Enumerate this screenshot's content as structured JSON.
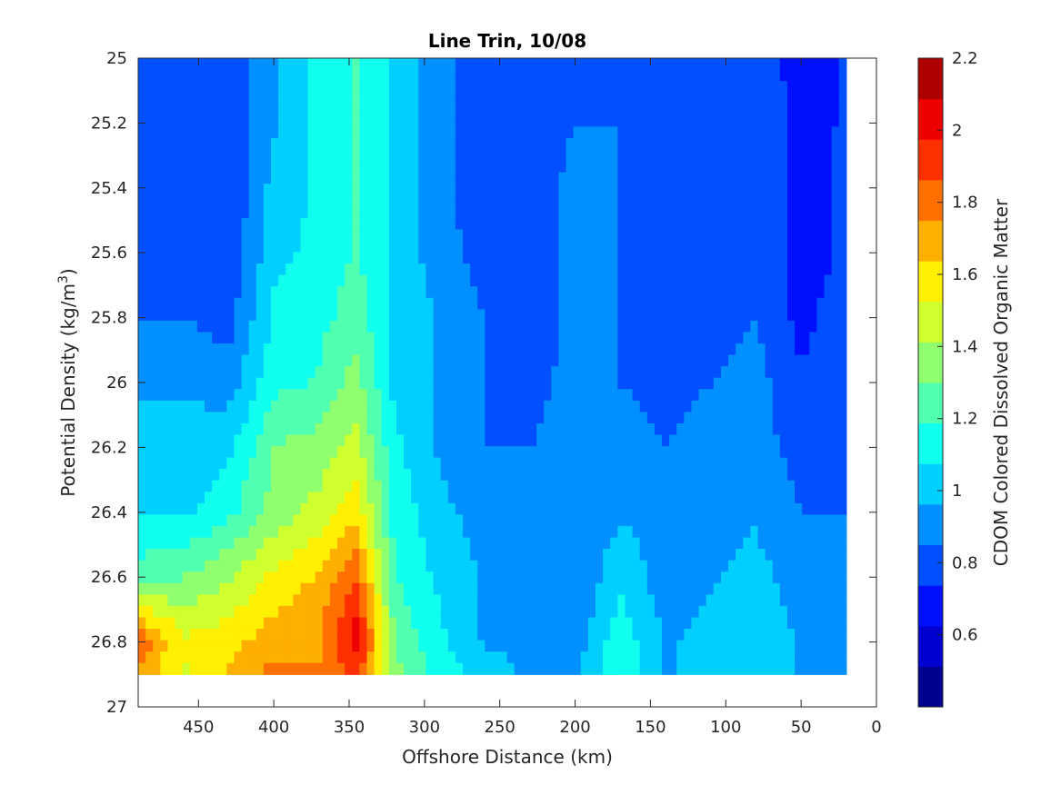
{
  "chart_data": {
    "type": "heatmap",
    "subtype": "filled-contour",
    "title": "Line Trin, 10/08",
    "xlabel": "Offshore Distance (km)",
    "ylabel": "Potential Density (kg/m^3)",
    "ylabel_parts": {
      "main": "Potential Density (kg/m",
      "sup": "3",
      "end": ")"
    },
    "colorbar_label": "CDOM Colored Dissolved Organic Matter",
    "x_reversed": true,
    "y_reversed": true,
    "xlim": [
      0,
      490
    ],
    "ylim": [
      25,
      27
    ],
    "xticks": [
      450,
      400,
      350,
      300,
      250,
      200,
      150,
      100,
      50,
      0
    ],
    "xtick_labels": [
      "450",
      "400",
      "350",
      "300",
      "250",
      "200",
      "150",
      "100",
      "50",
      "0"
    ],
    "yticks": [
      25,
      25.2,
      25.4,
      25.6,
      25.8,
      26,
      26.2,
      26.4,
      26.6,
      26.8,
      27
    ],
    "ytick_labels": [
      "25",
      "25.2",
      "25.4",
      "25.6",
      "25.8",
      "26",
      "26.2",
      "26.4",
      "26.6",
      "26.8",
      "27"
    ],
    "color_range": [
      0.4,
      2.2
    ],
    "colorbar_ticks": [
      0.6,
      0.8,
      1,
      1.2,
      1.4,
      1.6,
      1.8,
      2,
      2.2
    ],
    "colorbar_tick_labels": [
      "0.6",
      "0.8",
      "1",
      "1.2",
      "1.4",
      "1.6",
      "1.8",
      "2",
      "2.2"
    ],
    "colormap": [
      "#00008f",
      "#0000d0",
      "#0010ff",
      "#0050ff",
      "#0090ff",
      "#00d0ff",
      "#10ffef",
      "#50ffaf",
      "#90ff6f",
      "#d0ff2f",
      "#ffef00",
      "#ffaf00",
      "#ff7000",
      "#ff3000",
      "#ef0000",
      "#af0000"
    ],
    "grid": false,
    "no_data_region": "right edge, x < ~20 km; bottom, y > ~26.9",
    "x": [
      490,
      460,
      430,
      400,
      370,
      345,
      320,
      290,
      260,
      230,
      200,
      170,
      140,
      110,
      80,
      50,
      20
    ],
    "y": [
      25.0,
      25.2,
      25.4,
      25.6,
      25.8,
      26.0,
      26.2,
      26.4,
      26.6,
      26.8,
      26.9
    ],
    "z": [
      [
        0.8,
        0.85,
        0.75,
        0.95,
        1.1,
        1.2,
        1.05,
        0.9,
        0.75,
        0.75,
        0.85,
        0.8,
        0.75,
        0.8,
        0.85,
        0.65,
        0.75
      ],
      [
        0.8,
        0.85,
        0.75,
        0.95,
        1.1,
        1.2,
        1.05,
        0.9,
        0.75,
        0.75,
        0.85,
        0.85,
        0.75,
        0.8,
        0.85,
        0.7,
        0.75
      ],
      [
        0.8,
        0.85,
        0.75,
        1.0,
        1.1,
        1.2,
        1.05,
        0.9,
        0.75,
        0.75,
        0.9,
        0.85,
        0.75,
        0.8,
        0.85,
        0.7,
        0.75
      ],
      [
        0.8,
        0.85,
        0.75,
        1.05,
        1.1,
        1.2,
        1.05,
        0.9,
        0.8,
        0.75,
        0.9,
        0.85,
        0.75,
        0.8,
        0.85,
        0.7,
        0.75
      ],
      [
        0.85,
        0.85,
        0.8,
        1.1,
        1.15,
        1.25,
        1.05,
        0.95,
        0.85,
        0.75,
        0.9,
        0.85,
        0.75,
        0.8,
        0.85,
        0.7,
        0.8
      ],
      [
        0.95,
        0.95,
        0.9,
        1.15,
        1.2,
        1.35,
        1.05,
        0.95,
        0.85,
        0.8,
        0.9,
        0.85,
        0.8,
        0.85,
        0.9,
        0.75,
        0.8
      ],
      [
        1.0,
        1.0,
        1.05,
        1.3,
        1.35,
        1.45,
        1.1,
        0.95,
        0.85,
        0.85,
        0.9,
        0.9,
        0.85,
        0.9,
        0.9,
        0.8,
        0.85
      ],
      [
        1.05,
        1.05,
        1.15,
        1.35,
        1.45,
        1.6,
        1.15,
        1.0,
        0.9,
        0.9,
        0.85,
        0.95,
        0.9,
        0.9,
        0.95,
        0.85,
        0.85
      ],
      [
        1.25,
        1.3,
        1.4,
        1.55,
        1.65,
        1.85,
        1.2,
        1.05,
        0.95,
        0.9,
        0.85,
        1.05,
        0.9,
        0.95,
        1.0,
        0.9,
        0.9
      ],
      [
        1.85,
        1.55,
        1.6,
        1.7,
        1.75,
        2.05,
        1.3,
        1.1,
        0.95,
        0.95,
        0.9,
        1.15,
        0.95,
        1.0,
        1.05,
        0.95,
        0.95
      ],
      [
        1.7,
        1.5,
        1.65,
        1.8,
        1.75,
        1.9,
        1.35,
        1.15,
        1.0,
        0.95,
        0.95,
        1.2,
        0.95,
        1.0,
        1.05,
        0.95,
        0.95
      ]
    ]
  }
}
